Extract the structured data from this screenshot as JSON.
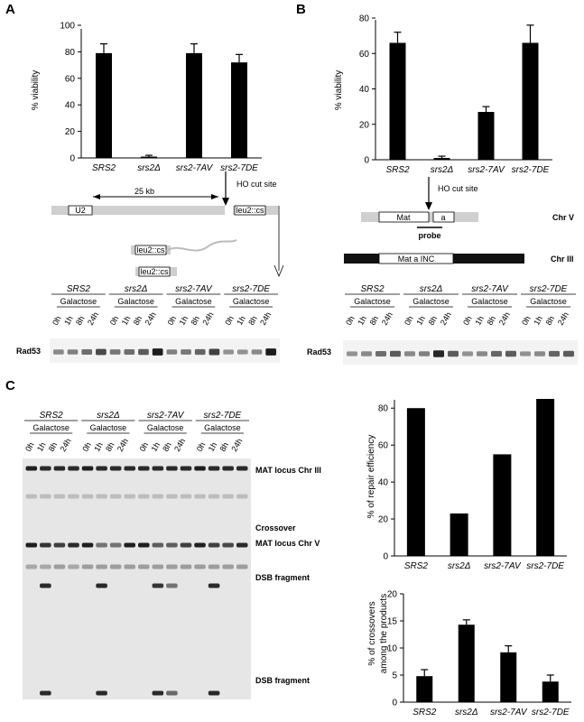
{
  "panels": {
    "A": {
      "label": "A",
      "top_chart": {
        "ylabel": "% viability",
        "yticks": [
          "0",
          "20",
          "40",
          "60",
          "80",
          "100"
        ],
        "ylim": [
          0,
          100
        ],
        "categories": [
          "SRS2",
          "srs2Δ",
          "srs2-7AV",
          "srs2-7DE"
        ],
        "values": [
          79,
          1,
          79,
          72
        ],
        "errors": [
          7,
          1,
          7,
          6
        ]
      },
      "diagram": {
        "distance": "25 kb",
        "cut_site": "HO cut site",
        "box1": "U2",
        "box2": "leu2::cs",
        "box3": "leu2::cs",
        "box4": "leu2::cs"
      },
      "blot": {
        "strains": [
          "SRS2",
          "srs2Δ",
          "srs2-7AV",
          "srs2-7DE"
        ],
        "condition": "Galactose",
        "times": [
          "0h",
          "1h",
          "8h",
          "24h"
        ],
        "band_label": "Rad53"
      }
    },
    "B": {
      "label": "B",
      "top_chart": {
        "ylabel": "% viability",
        "yticks": [
          "0",
          "20",
          "40",
          "60",
          "80"
        ],
        "ylim": [
          0,
          80
        ],
        "categories": [
          "SRS2",
          "srs2Δ",
          "srs2-7AV",
          "srs2-7DE"
        ],
        "values": [
          66,
          1,
          27,
          66
        ],
        "errors": [
          6,
          1,
          3,
          10
        ]
      },
      "diagram": {
        "cut_site": "HO cut site",
        "mat": "Mat",
        "a_box": "a",
        "probe": "probe",
        "chr5": "Chr V",
        "chr3": "Chr III",
        "mat_inc": "Mat a INC"
      },
      "blot": {
        "strains": [
          "SRS2",
          "srs2Δ",
          "srs2-7AV",
          "srs2-7DE"
        ],
        "condition": "Galactose",
        "times": [
          "0h",
          "1h",
          "8h",
          "24h"
        ],
        "band_label": "Rad53"
      }
    },
    "C": {
      "label": "C",
      "gel": {
        "strains": [
          "SRS2",
          "srs2Δ",
          "srs2-7AV",
          "srs2-7DE"
        ],
        "condition": "Galactose",
        "times": [
          "0h",
          "1h",
          "8h",
          "24h"
        ],
        "bands": [
          "MAT locus Chr III",
          "Crossover",
          "MAT locus Chr V",
          "DSB fragment",
          "DSB fragment"
        ]
      },
      "repair_chart": {
        "ylabel": "% of repair efficiency",
        "yticks": [
          "0",
          "20",
          "40",
          "60",
          "80"
        ],
        "ylim": [
          0,
          85
        ],
        "categories": [
          "SRS2",
          "srs2Δ",
          "srs2-7AV",
          "srs2-7DE"
        ],
        "values": [
          80,
          23,
          55,
          85
        ]
      },
      "crossover_chart": {
        "ylabel_line1": "% of crossovers",
        "ylabel_line2": "among the products",
        "yticks": [
          "0",
          "5",
          "10",
          "15",
          "20"
        ],
        "ylim": [
          0,
          20
        ],
        "categories": [
          "SRS2",
          "srs2Δ",
          "srs2-7AV",
          "srs2-7DE"
        ],
        "values": [
          4.8,
          14.3,
          9.2,
          3.8
        ],
        "errors": [
          1.2,
          0.9,
          1.2,
          1.2
        ]
      }
    }
  }
}
